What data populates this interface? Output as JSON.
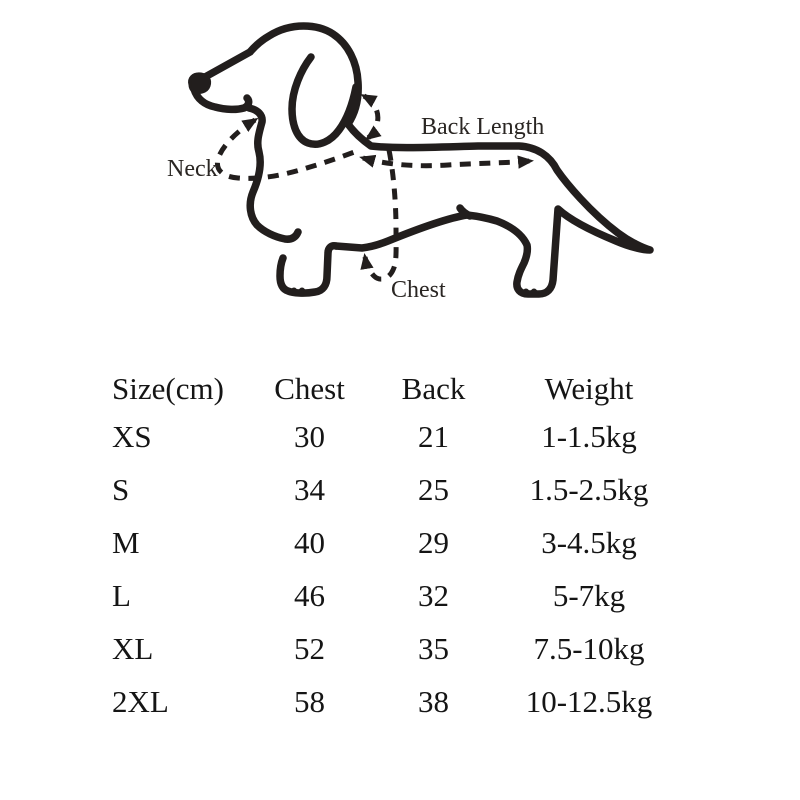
{
  "diagram": {
    "neck_label": "Neck",
    "back_length_label": "Back Length",
    "chest_label": "Chest"
  },
  "table": {
    "headers": [
      "Size(cm)",
      "Chest",
      "Back",
      "Weight"
    ],
    "column_keys": [
      "size",
      "chest",
      "back",
      "weight"
    ],
    "rows": [
      {
        "size": "XS",
        "chest": "30",
        "back": "21",
        "weight": "1-1.5kg"
      },
      {
        "size": "S",
        "chest": "34",
        "back": "25",
        "weight": "1.5-2.5kg"
      },
      {
        "size": "M",
        "chest": "40",
        "back": "29",
        "weight": "3-4.5kg"
      },
      {
        "size": "L",
        "chest": "46",
        "back": "32",
        "weight": "5-7kg"
      },
      {
        "size": "XL",
        "chest": "52",
        "back": "35",
        "weight": "7.5-10kg"
      },
      {
        "size": "2XL",
        "chest": "58",
        "back": "38",
        "weight": "10-12.5kg"
      }
    ]
  },
  "colors": {
    "line": "#221e1d",
    "text": "#151515",
    "background": "#ffffff"
  }
}
